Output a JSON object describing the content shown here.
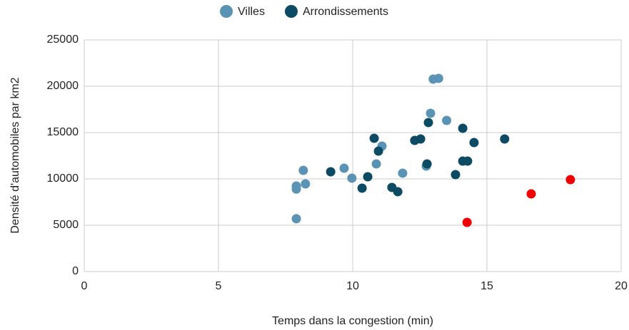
{
  "chart_data": {
    "type": "scatter",
    "xlabel": "Temps dans la congestion (min)",
    "ylabel": "Densité d'automobiles par km2",
    "xlim": [
      0,
      20
    ],
    "xticks": [
      0,
      5,
      10,
      15,
      20
    ],
    "ylim": [
      0,
      25000
    ],
    "yticks": [
      0,
      5000,
      10000,
      15000,
      20000,
      25000
    ],
    "grid": true,
    "legend": "top",
    "series": [
      {
        "name": "Villes",
        "color": "#5b93b5",
        "x": [
          7.9,
          7.9,
          7.9,
          8.16,
          8.24,
          9.68,
          9.97,
          10.88,
          11.09,
          11.86,
          12.74,
          12.9,
          13.0,
          13.2,
          13.5
        ],
        "values": [
          5700,
          9230,
          8900,
          10920,
          9460,
          11150,
          10080,
          11620,
          13540,
          10620,
          11380,
          17080,
          20770,
          20850,
          16310
        ]
      },
      {
        "name": "Arrondissements",
        "color": "#0d4a63",
        "x": [
          9.18,
          10.35,
          10.56,
          10.8,
          10.96,
          11.46,
          11.68,
          12.31,
          12.53,
          12.77,
          12.82,
          13.83,
          14.1,
          14.1,
          14.28,
          14.52,
          15.66
        ],
        "values": [
          10770,
          9000,
          10230,
          14380,
          13000,
          9080,
          8620,
          14150,
          14310,
          11620,
          16080,
          10460,
          15460,
          11920,
          11920,
          13920,
          14310
        ]
      },
      {
        "color": "#ee0000",
        "x": [
          14.26,
          16.65,
          18.11
        ],
        "values": [
          5310,
          8380,
          9920
        ]
      }
    ]
  }
}
